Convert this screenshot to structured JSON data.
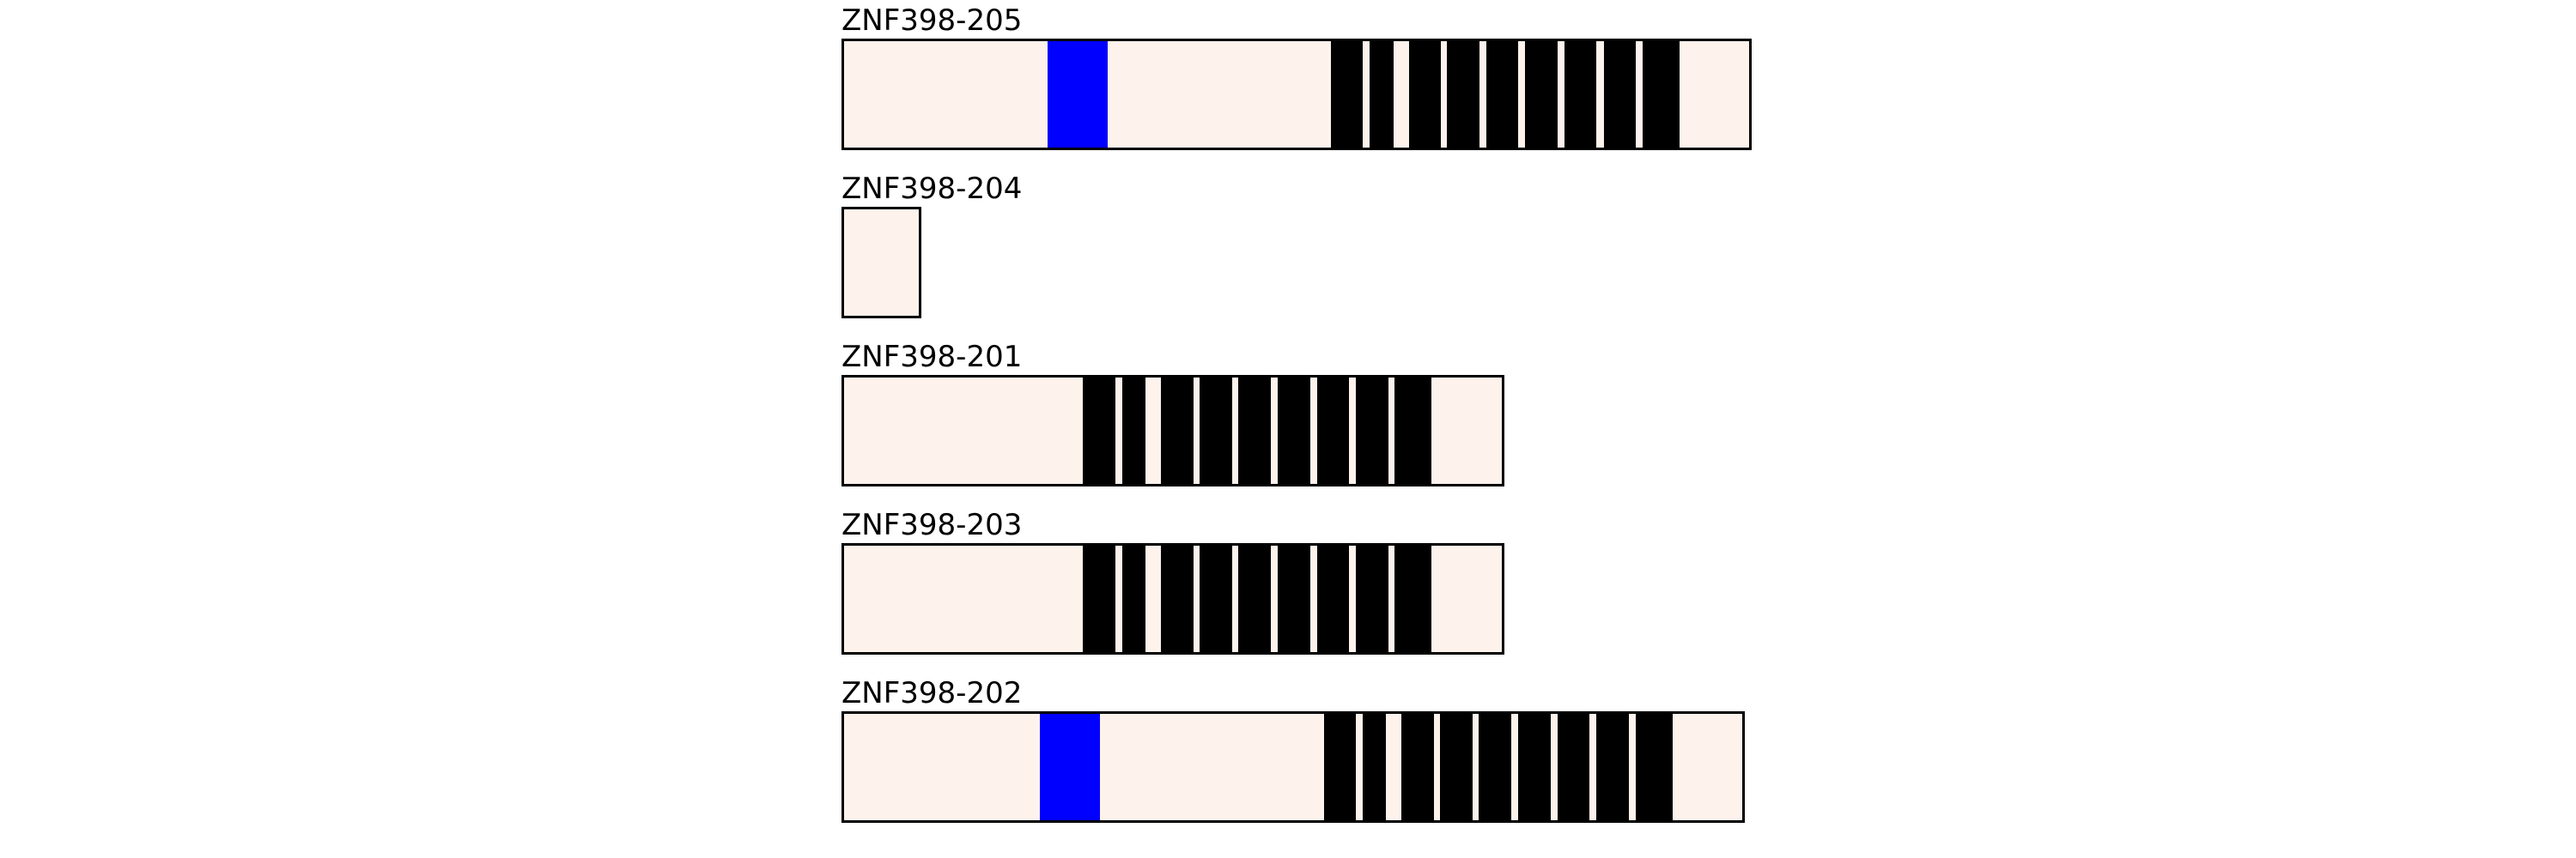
{
  "colors": {
    "background": "#ffffff",
    "transcript_fill": "#fdf2ec",
    "outline": "#000000",
    "domain_black": "#000000",
    "domain_blue": "#0000ff"
  },
  "scale": {
    "units": "arbitrary",
    "domain_max": 1100
  },
  "transcripts": [
    {
      "name": "ZNF398-205",
      "length": 1060,
      "features": [
        {
          "color": "blue",
          "start": 240,
          "end": 310
        },
        {
          "color": "black",
          "start": 570,
          "end": 607
        },
        {
          "color": "black",
          "start": 615,
          "end": 643
        },
        {
          "color": "black",
          "start": 661,
          "end": 698
        },
        {
          "color": "black",
          "start": 705,
          "end": 743
        },
        {
          "color": "black",
          "start": 751,
          "end": 788
        },
        {
          "color": "black",
          "start": 796,
          "end": 834
        },
        {
          "color": "black",
          "start": 842,
          "end": 879
        },
        {
          "color": "black",
          "start": 888,
          "end": 925
        },
        {
          "color": "black",
          "start": 933,
          "end": 976
        }
      ]
    },
    {
      "name": "ZNF398-204",
      "length": 93,
      "features": []
    },
    {
      "name": "ZNF398-201",
      "length": 772,
      "features": [
        {
          "color": "black",
          "start": 281,
          "end": 319
        },
        {
          "color": "black",
          "start": 327,
          "end": 354
        },
        {
          "color": "black",
          "start": 372,
          "end": 410
        },
        {
          "color": "black",
          "start": 417,
          "end": 455
        },
        {
          "color": "black",
          "start": 462,
          "end": 500
        },
        {
          "color": "black",
          "start": 508,
          "end": 546
        },
        {
          "color": "black",
          "start": 554,
          "end": 591
        },
        {
          "color": "black",
          "start": 599,
          "end": 637
        },
        {
          "color": "black",
          "start": 644,
          "end": 687
        }
      ]
    },
    {
      "name": "ZNF398-203",
      "length": 772,
      "features": [
        {
          "color": "black",
          "start": 281,
          "end": 319
        },
        {
          "color": "black",
          "start": 327,
          "end": 354
        },
        {
          "color": "black",
          "start": 372,
          "end": 410
        },
        {
          "color": "black",
          "start": 417,
          "end": 455
        },
        {
          "color": "black",
          "start": 462,
          "end": 500
        },
        {
          "color": "black",
          "start": 508,
          "end": 546
        },
        {
          "color": "black",
          "start": 554,
          "end": 591
        },
        {
          "color": "black",
          "start": 599,
          "end": 637
        },
        {
          "color": "black",
          "start": 644,
          "end": 687
        }
      ]
    },
    {
      "name": "ZNF398-202",
      "length": 1052,
      "features": [
        {
          "color": "blue",
          "start": 231,
          "end": 301
        },
        {
          "color": "black",
          "start": 562,
          "end": 599
        },
        {
          "color": "black",
          "start": 607,
          "end": 634
        },
        {
          "color": "black",
          "start": 652,
          "end": 690
        },
        {
          "color": "black",
          "start": 697,
          "end": 735
        },
        {
          "color": "black",
          "start": 742,
          "end": 780
        },
        {
          "color": "black",
          "start": 788,
          "end": 826
        },
        {
          "color": "black",
          "start": 834,
          "end": 871
        },
        {
          "color": "black",
          "start": 879,
          "end": 917
        },
        {
          "color": "black",
          "start": 925,
          "end": 968
        }
      ]
    }
  ]
}
